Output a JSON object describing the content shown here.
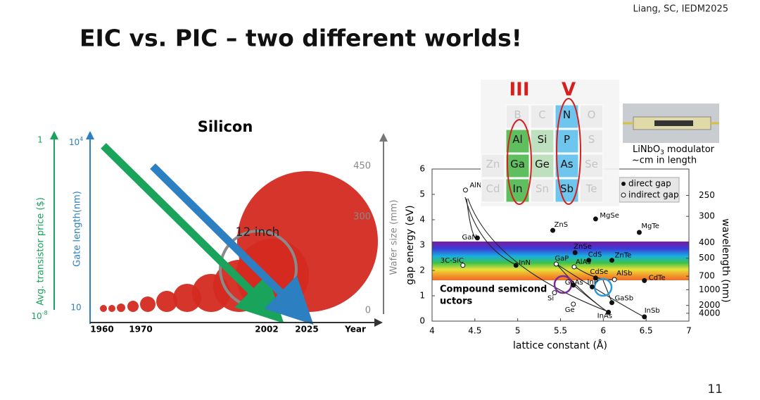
{
  "citation": "Liang, SC, IEDM2025",
  "title": "EIC vs. PIC – two different worlds!",
  "page_number": "11",
  "silicon_chart": {
    "title": "Silicon",
    "price_axis": {
      "label": "Avg. transistor price ($)",
      "top": "1",
      "bottom": {
        "base": "10",
        "exp": "-8"
      }
    },
    "gate_axis": {
      "label": "Gate length(nm)",
      "top": {
        "base": "10",
        "exp": "4"
      },
      "bottom": "10"
    },
    "wafer_axis": {
      "label": "Wafer size (mm)",
      "ticks": [
        "450",
        "300",
        "0"
      ]
    },
    "years": [
      "1960",
      "1970",
      "2002",
      "2025"
    ],
    "x_label": "Year",
    "annotation": "12 inch"
  },
  "periodic_table": {
    "group_labels": [
      "III",
      "V"
    ],
    "rows": [
      [
        "",
        "B",
        "C",
        "N",
        "O"
      ],
      [
        "",
        "Al",
        "Si",
        "P",
        "S"
      ],
      [
        "Zn",
        "Ga",
        "Ge",
        "As",
        "Se"
      ],
      [
        "Cd",
        "In",
        "Sn",
        "Sb",
        "Te"
      ]
    ]
  },
  "modulator": {
    "name": "LiNbO",
    "subscript": "3",
    "suffix": " modulator",
    "note": "~cm in length"
  },
  "gap_chart": {
    "xlabel": "lattice constant (Å)",
    "ylabel": "gap energy (eV)",
    "y2label": "wavelength (nm)",
    "xlim": [
      4,
      7
    ],
    "ylim": [
      0,
      6
    ],
    "xticks": [
      4,
      4.5,
      5,
      5.5,
      6,
      6.5,
      7
    ],
    "yticks": [
      0,
      1,
      2,
      3,
      4,
      5,
      6
    ],
    "y2ticks": [
      250,
      300,
      400,
      500,
      700,
      1000,
      2000,
      4000
    ],
    "legend": [
      "direct gap",
      "indirect gap"
    ],
    "region_label": [
      "Compound semicond",
      "uctors"
    ],
    "points": [
      {
        "name": "AlN",
        "x": 4.39,
        "y": 5.17,
        "direct": false
      },
      {
        "name": "GaN",
        "x": 4.53,
        "y": 3.28,
        "direct": true
      },
      {
        "name": "InN",
        "x": 4.98,
        "y": 2.2,
        "direct": true
      },
      {
        "name": "3C-SiC",
        "x": 4.36,
        "y": 2.2,
        "direct": false
      },
      {
        "name": "ZnS",
        "x": 5.41,
        "y": 3.58,
        "direct": true
      },
      {
        "name": "MgSe",
        "x": 5.91,
        "y": 4.03,
        "direct": true
      },
      {
        "name": "MgTe",
        "x": 6.42,
        "y": 3.5,
        "direct": true
      },
      {
        "name": "ZnSe",
        "x": 5.67,
        "y": 2.7,
        "direct": true
      },
      {
        "name": "CdS",
        "x": 5.83,
        "y": 2.4,
        "direct": true
      },
      {
        "name": "ZnTe",
        "x": 6.1,
        "y": 2.4,
        "direct": true
      },
      {
        "name": "GaP",
        "x": 5.45,
        "y": 2.25,
        "direct": false
      },
      {
        "name": "AlAs",
        "x": 5.66,
        "y": 2.14,
        "direct": false
      },
      {
        "name": "CdSe",
        "x": 5.91,
        "y": 1.7,
        "direct": true
      },
      {
        "name": "AlSb",
        "x": 6.13,
        "y": 1.64,
        "direct": false
      },
      {
        "name": "CdTe",
        "x": 6.48,
        "y": 1.6,
        "direct": true
      },
      {
        "name": "GaAs",
        "x": 5.65,
        "y": 1.42,
        "direct": true
      },
      {
        "name": "InP",
        "x": 5.87,
        "y": 1.35,
        "direct": true
      },
      {
        "name": "Si",
        "x": 5.43,
        "y": 1.12,
        "direct": false
      },
      {
        "name": "Ge",
        "x": 5.65,
        "y": 0.67,
        "direct": false
      },
      {
        "name": "InAs",
        "x": 6.06,
        "y": 0.35,
        "direct": true
      },
      {
        "name": "GaSb",
        "x": 6.1,
        "y": 0.73,
        "direct": true
      },
      {
        "name": "InSb",
        "x": 6.48,
        "y": 0.17,
        "direct": true
      }
    ]
  }
}
